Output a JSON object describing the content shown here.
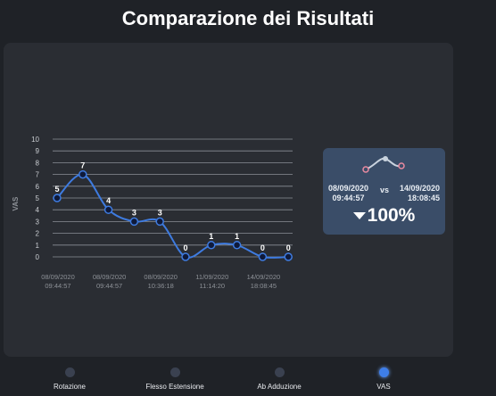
{
  "title": "Comparazione dei Risultati",
  "chart_data": {
    "type": "line",
    "ylabel": "VAS",
    "ylim": [
      0,
      10
    ],
    "yticks": [
      0,
      1,
      2,
      3,
      4,
      5,
      6,
      7,
      8,
      9,
      10
    ],
    "grid": true,
    "color": "#3e7be0",
    "x": [
      [
        "08/09/2020",
        "09:44:57"
      ],
      [
        "",
        ""
      ],
      [
        "08/09/2020",
        "09:44:57"
      ],
      [
        "",
        ""
      ],
      [
        "08/09/2020",
        "10:36:18"
      ],
      [
        "",
        ""
      ],
      [
        "11/09/2020",
        "11:14:20"
      ],
      [
        "",
        ""
      ],
      [
        "14/09/2020",
        "18:08:45"
      ],
      [
        "",
        ""
      ]
    ],
    "values": [
      5,
      7,
      4,
      3,
      3,
      0,
      1,
      1,
      0,
      0
    ]
  },
  "comparison": {
    "date_left": "08/09/2020",
    "time_left": "09:44:57",
    "vs": "vs",
    "date_right": "14/09/2020",
    "time_right": "18:08:45",
    "percent": "100%",
    "icon": "trend-line-icon"
  },
  "selectors": [
    {
      "label": "Rotazione",
      "active": false
    },
    {
      "label": "Flesso Estensione",
      "active": false
    },
    {
      "label": "Ab Adduzione",
      "active": false
    },
    {
      "label": "VAS",
      "active": true
    }
  ],
  "colors": {
    "background": "#1f2227",
    "panel": "#2a2d33",
    "card": "#3a4d68",
    "accent": "#3e7ee8"
  }
}
